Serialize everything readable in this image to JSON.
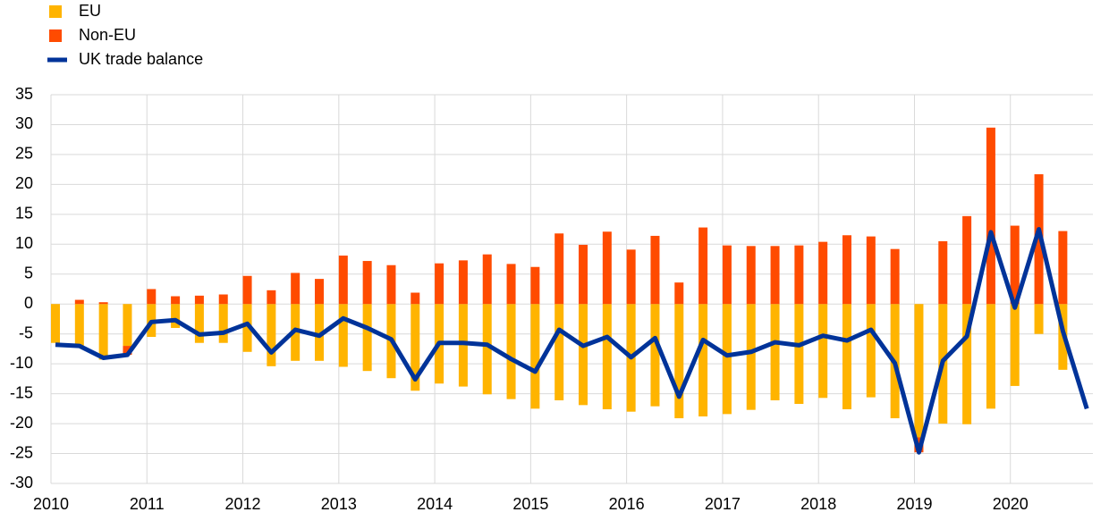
{
  "chart_data": {
    "type": "bar",
    "x": [
      2010,
      2010.25,
      2010.5,
      2010.75,
      2011,
      2011.25,
      2011.5,
      2011.75,
      2012,
      2012.25,
      2012.5,
      2012.75,
      2013,
      2013.25,
      2013.5,
      2013.75,
      2014,
      2014.25,
      2014.5,
      2014.75,
      2015,
      2015.25,
      2015.5,
      2015.75,
      2016,
      2016.25,
      2016.5,
      2016.75,
      2017,
      2017.25,
      2017.5,
      2017.75,
      2018,
      2018.25,
      2018.5,
      2018.75,
      2019,
      2019.25,
      2019.5,
      2019.75,
      2020,
      2020.25,
      2020.5,
      2020.75
    ],
    "series": [
      {
        "name": "EU",
        "type": "bar",
        "color": "#ffb400",
        "values": [
          -6.5,
          -7,
          -9.3,
          -7,
          -5.5,
          -4,
          -6.5,
          -6.5,
          -8,
          -10.4,
          -9.5,
          -9.5,
          -10.5,
          -11.2,
          -12.4,
          -14.5,
          -13.3,
          -13.8,
          -15.1,
          -15.9,
          -17.5,
          -16.1,
          -16.9,
          -17.6,
          -18,
          -17.1,
          -19.1,
          -18.8,
          -18.4,
          -17.7,
          -16.1,
          -16.7,
          -15.7,
          -17.6,
          -15.6,
          -19.1,
          -22.3,
          -20,
          -20.1,
          -17.5,
          -13.7,
          -5,
          -11,
          null
        ]
      },
      {
        "name": "Non-EU",
        "type": "bar",
        "color": "#ff4b00",
        "values": [
          0,
          0.7,
          0.3,
          -1.5,
          2.5,
          1.3,
          1.4,
          1.6,
          4.7,
          2.3,
          5.2,
          4.2,
          8.1,
          7.2,
          6.5,
          1.9,
          6.8,
          7.3,
          8.3,
          6.7,
          6.2,
          11.8,
          9.9,
          12.1,
          9.1,
          11.4,
          3.6,
          12.8,
          9.8,
          9.7,
          9.7,
          9.8,
          10.4,
          11.5,
          11.3,
          9.2,
          -2.5,
          10.5,
          14.7,
          29.5,
          13.1,
          21.7,
          12.2,
          null
        ]
      },
      {
        "name": "UK trade balance",
        "type": "line",
        "color": "#003399",
        "values": [
          -6.8,
          -7,
          -9,
          -8.5,
          -3,
          -2.7,
          -5.1,
          -4.8,
          -3.3,
          -8.1,
          -4.3,
          -5.3,
          -2.4,
          -4,
          -5.9,
          -12.6,
          -6.5,
          -6.5,
          -6.8,
          -9.2,
          -11.3,
          -4.3,
          -7,
          -5.5,
          -8.9,
          -5.7,
          -15.5,
          -6,
          -8.6,
          -8,
          -6.4,
          -6.9,
          -5.3,
          -6.1,
          -4.3,
          -9.9,
          -24.8,
          -9.5,
          -5.4,
          12,
          -0.6,
          12.5,
          -4.5,
          -17.5
        ]
      }
    ],
    "xlim": [
      2010,
      2020.86
    ],
    "xticks": [
      2010,
      2011,
      2012,
      2013,
      2014,
      2015,
      2016,
      2017,
      2018,
      2019,
      2020
    ],
    "ylim": [
      -30,
      35
    ],
    "yticks": [
      -30,
      -25,
      -20,
      -15,
      -10,
      -5,
      0,
      5,
      10,
      15,
      20,
      25,
      30,
      35
    ],
    "grid": true,
    "legend": "top-left"
  }
}
